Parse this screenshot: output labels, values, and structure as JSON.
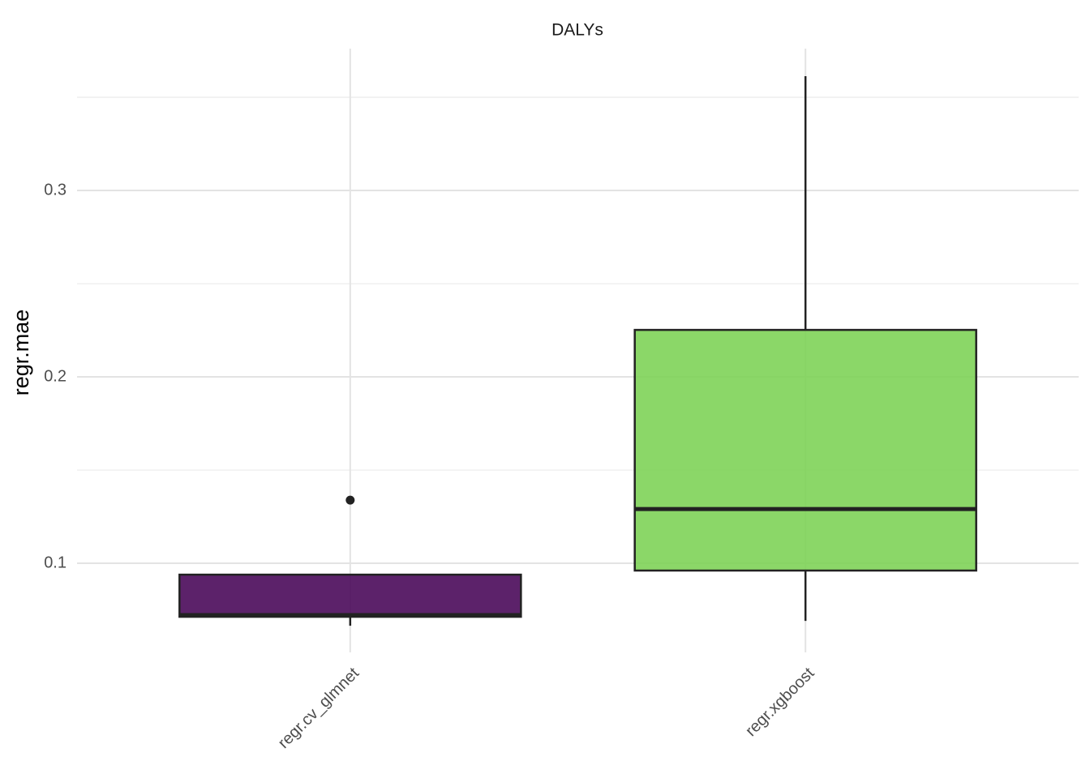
{
  "chart_data": {
    "type": "box",
    "title": "DALYs",
    "y_label": "regr.mae",
    "categories": [
      "regr.cv_glmnet",
      "regr.xgboost"
    ],
    "colors": [
      "#440154",
      "#7AD151"
    ],
    "boxes": [
      {
        "whislo": 0.0665,
        "q1": 0.0713,
        "median": 0.0722,
        "q3": 0.0939,
        "whishi": 0.0939,
        "outliers": [
          0.1339
        ]
      },
      {
        "whislo": 0.0691,
        "q1": 0.0961,
        "median": 0.1291,
        "q3": 0.2252,
        "whishi": 0.3613,
        "outliers": []
      }
    ],
    "ylim": [
      0.0522,
      0.3761
    ],
    "yticks": [
      0.1,
      0.2,
      0.3
    ],
    "y_minor_ticks": [
      0.15,
      0.25,
      0.35
    ],
    "grid": true
  }
}
